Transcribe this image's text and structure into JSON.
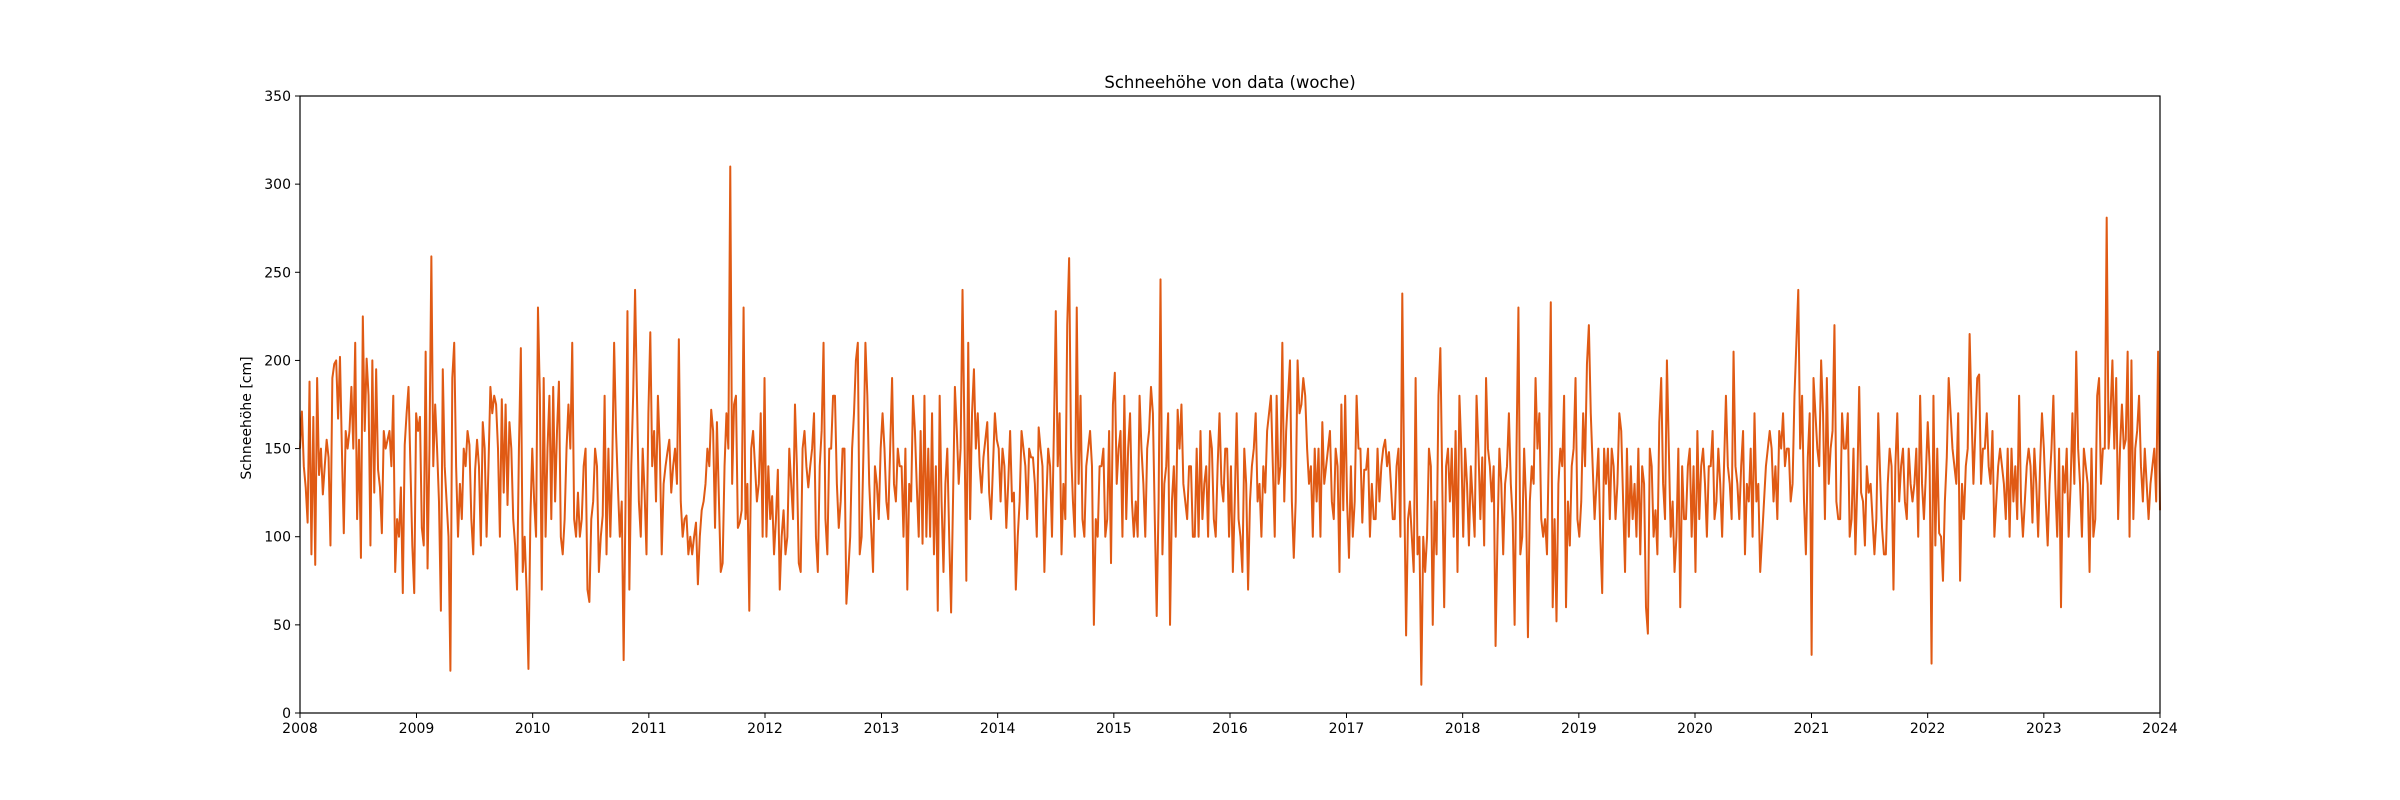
{
  "chart_data": {
    "type": "line",
    "title": "Schneehöhe von data (woche)",
    "xlabel": "",
    "ylabel": "Schneehöhe [cm]",
    "x_ticks": [
      "2008",
      "2009",
      "2010",
      "2011",
      "2012",
      "2013",
      "2014",
      "2015",
      "2016",
      "2017",
      "2018",
      "2019",
      "2020",
      "2021",
      "2022",
      "2023",
      "2024"
    ],
    "y_ticks": [
      "0",
      "50",
      "100",
      "150",
      "200",
      "250",
      "300",
      "350"
    ],
    "xlim": [
      "2008-01-01",
      "2024-01-01"
    ],
    "ylim": [
      0,
      350
    ],
    "grid": false,
    "legend": "none",
    "line_color": "#e05a14",
    "series": [
      {
        "sampling": "weekly",
        "start": "2008-01-01",
        "values": [
          150,
          171,
          140,
          128,
          108,
          188,
          90,
          168,
          84,
          190,
          135,
          150,
          124,
          140,
          155,
          145,
          95,
          190,
          198,
          200,
          167,
          202,
          150,
          102,
          160,
          150,
          160,
          185,
          150,
          210,
          110,
          155,
          88,
          225,
          160,
          201,
          180,
          95,
          200,
          125,
          195,
          138,
          128,
          102,
          160,
          150,
          155,
          160,
          140,
          180,
          80,
          110,
          100,
          128,
          68,
          152,
          170,
          185,
          140,
          95,
          68,
          170,
          160,
          168,
          105,
          95,
          205,
          82,
          150,
          259,
          140,
          175,
          150,
          120,
          58,
          195,
          140,
          120,
          100,
          24,
          190,
          210,
          140,
          100,
          130,
          110,
          150,
          140,
          160,
          152,
          110,
          90,
          138,
          155,
          140,
          95,
          165,
          150,
          100,
          140,
          185,
          170,
          180,
          175,
          150,
          100,
          178,
          125,
          175,
          118,
          165,
          150,
          110,
          95,
          70,
          150,
          207,
          80,
          100,
          70,
          25,
          110,
          150,
          120,
          100,
          230,
          180,
          70,
          190,
          100,
          150,
          180,
          110,
          185,
          120,
          160,
          188,
          100,
          90,
          110,
          150,
          175,
          150,
          210,
          110,
          100,
          125,
          100,
          110,
          140,
          150,
          70,
          63,
          110,
          120,
          150,
          140,
          80,
          100,
          112,
          180,
          90,
          150,
          100,
          140,
          210,
          160,
          128,
          100,
          120,
          30,
          120,
          228,
          70,
          140,
          180,
          240,
          180,
          120,
          100,
          150,
          125,
          90,
          170,
          216,
          140,
          160,
          120,
          180,
          150,
          90,
          130,
          140,
          148,
          155,
          125,
          140,
          150,
          130,
          212,
          120,
          100,
          110,
          112,
          90,
          100,
          90,
          100,
          108,
          73,
          100,
          115,
          120,
          130,
          150,
          140,
          172,
          160,
          105,
          165,
          123,
          80,
          85,
          140,
          170,
          150,
          310,
          130,
          175,
          180,
          105,
          108,
          115,
          230,
          110,
          130,
          58,
          150,
          160,
          140,
          120,
          130,
          170,
          100,
          190,
          100,
          140,
          110,
          123,
          90,
          110,
          138,
          70,
          100,
          115,
          90,
          100,
          150,
          130,
          110,
          175,
          140,
          85,
          80,
          150,
          160,
          140,
          128,
          140,
          150,
          170,
          100,
          80,
          140,
          160,
          210,
          110,
          90,
          150,
          150,
          180,
          180,
          130,
          105,
          120,
          150,
          150,
          62,
          80,
          100,
          150,
          170,
          200,
          210,
          90,
          100,
          150,
          210,
          180,
          130,
          105,
          80,
          140,
          130,
          110,
          150,
          170,
          150,
          120,
          110,
          150,
          190,
          130,
          120,
          150,
          140,
          140,
          100,
          150,
          70,
          130,
          120,
          180,
          160,
          128,
          100,
          160,
          96,
          180,
          100,
          150,
          100,
          170,
          90,
          140,
          58,
          180,
          120,
          80,
          130,
          150,
          100,
          57,
          120,
          185,
          160,
          130,
          150,
          240,
          160,
          75,
          210,
          110,
          170,
          195,
          150,
          170,
          140,
          125,
          145,
          155,
          165,
          125,
          110,
          140,
          170,
          155,
          150,
          120,
          150,
          140,
          105,
          130,
          160,
          120,
          125,
          70,
          100,
          120,
          160,
          150,
          140,
          110,
          150,
          145,
          145,
          130,
          100,
          162,
          150,
          140,
          80,
          120,
          150,
          140,
          100,
          160,
          228,
          140,
          170,
          90,
          130,
          110,
          220,
          258,
          150,
          120,
          100,
          230,
          130,
          180,
          110,
          100,
          140,
          150,
          160,
          140,
          50,
          110,
          100,
          140,
          140,
          150,
          100,
          110,
          160,
          85,
          175,
          193,
          130,
          150,
          160,
          100,
          180,
          110,
          150,
          170,
          120,
          100,
          120,
          100,
          180,
          150,
          130,
          100,
          150,
          160,
          185,
          170,
          110,
          55,
          120,
          246,
          90,
          130,
          140,
          170,
          50,
          120,
          140,
          100,
          172,
          150,
          175,
          130,
          120,
          110,
          140,
          140,
          100,
          100,
          150,
          100,
          160,
          110,
          130,
          140,
          100,
          160,
          150,
          110,
          100,
          140,
          170,
          130,
          120,
          150,
          150,
          100,
          140,
          80,
          120,
          170,
          110,
          100,
          80,
          150,
          130,
          70,
          120,
          140,
          150,
          170,
          120,
          130,
          100,
          140,
          125,
          160,
          170,
          180,
          140,
          100,
          180,
          130,
          140,
          210,
          120,
          160,
          180,
          200,
          120,
          88,
          120,
          200,
          170,
          175,
          190,
          180,
          150,
          130,
          140,
          100,
          150,
          120,
          150,
          100,
          165,
          130,
          140,
          150,
          160,
          120,
          110,
          150,
          140,
          80,
          175,
          115,
          180,
          120,
          88,
          140,
          100,
          120,
          180,
          150,
          150,
          108,
          138,
          138,
          150,
          100,
          130,
          110,
          110,
          150,
          120,
          140,
          150,
          155,
          140,
          148,
          130,
          110,
          110,
          140,
          150,
          100,
          238,
          130,
          44,
          110,
          120,
          100,
          80,
          190,
          90,
          100,
          16,
          100,
          80,
          100,
          150,
          140,
          50,
          120,
          90,
          180,
          207,
          130,
          60,
          140,
          150,
          120,
          150,
          100,
          160,
          80,
          180,
          150,
          100,
          150,
          130,
          95,
          140,
          120,
          100,
          180,
          150,
          110,
          145,
          95,
          190,
          150,
          140,
          120,
          140,
          38,
          100,
          150,
          130,
          90,
          130,
          140,
          170,
          130,
          110,
          50,
          150,
          230,
          90,
          100,
          150,
          120,
          43,
          120,
          140,
          130,
          190,
          150,
          170,
          110,
          100,
          110,
          90,
          150,
          233,
          60,
          110,
          52,
          130,
          150,
          140,
          180,
          60,
          120,
          95,
          140,
          150,
          190,
          110,
          100,
          120,
          170,
          140,
          198,
          220,
          170,
          140,
          110,
          130,
          150,
          100,
          68,
          150,
          130,
          150,
          110,
          150,
          140,
          110,
          130,
          170,
          160,
          120,
          80,
          150,
          100,
          140,
          110,
          130,
          100,
          150,
          90,
          140,
          130,
          60,
          45,
          150,
          140,
          100,
          115,
          90,
          165,
          190,
          130,
          110,
          200,
          150,
          100,
          120,
          80,
          100,
          150,
          60,
          140,
          110,
          110,
          140,
          150,
          100,
          140,
          80,
          160,
          110,
          140,
          150,
          130,
          100,
          140,
          140,
          160,
          110,
          120,
          150,
          130,
          100,
          140,
          180,
          140,
          130,
          110,
          205,
          140,
          130,
          110,
          140,
          160,
          90,
          130,
          120,
          150,
          100,
          170,
          120,
          130,
          80,
          100,
          120,
          140,
          150,
          160,
          150,
          120,
          140,
          110,
          160,
          150,
          170,
          140,
          150,
          150,
          120,
          130,
          180,
          210,
          240,
          150,
          180,
          120,
          90,
          145,
          170,
          33,
          190,
          170,
          150,
          140,
          200,
          170,
          110,
          190,
          130,
          150,
          160,
          220,
          120,
          110,
          110,
          170,
          150,
          150,
          170,
          100,
          110,
          150,
          90,
          130,
          185,
          125,
          120,
          95,
          140,
          125,
          130,
          110,
          90,
          110,
          170,
          135,
          105,
          90,
          90,
          130,
          150,
          140,
          70,
          140,
          170,
          120,
          140,
          150,
          120,
          110,
          150,
          130,
          120,
          130,
          150,
          100,
          180,
          130,
          110,
          135,
          165,
          140,
          28,
          180,
          95,
          150,
          102,
          100,
          75,
          120,
          145,
          190,
          170,
          150,
          140,
          130,
          170,
          75,
          130,
          110,
          140,
          150,
          215,
          170,
          130,
          160,
          190,
          192,
          130,
          150,
          150,
          170,
          140,
          130,
          160,
          100,
          120,
          140,
          150,
          140,
          130,
          110,
          150,
          100,
          150,
          120,
          140,
          110,
          180,
          120,
          100,
          120,
          140,
          150,
          140,
          108,
          150,
          130,
          100,
          140,
          170,
          150,
          120,
          95,
          130,
          150,
          180,
          130,
          100,
          150,
          60,
          140,
          125,
          150,
          100,
          128,
          170,
          130,
          205,
          150,
          130,
          100,
          150,
          140,
          130,
          80,
          150,
          100,
          110,
          180,
          190,
          130,
          150,
          150,
          281,
          150,
          170,
          200,
          150,
          190,
          110,
          150,
          175,
          150,
          155,
          205,
          100,
          200,
          110,
          150,
          160,
          180,
          140,
          120,
          150,
          130,
          110,
          130,
          140,
          150,
          120,
          205,
          115
        ]
      }
    ]
  }
}
